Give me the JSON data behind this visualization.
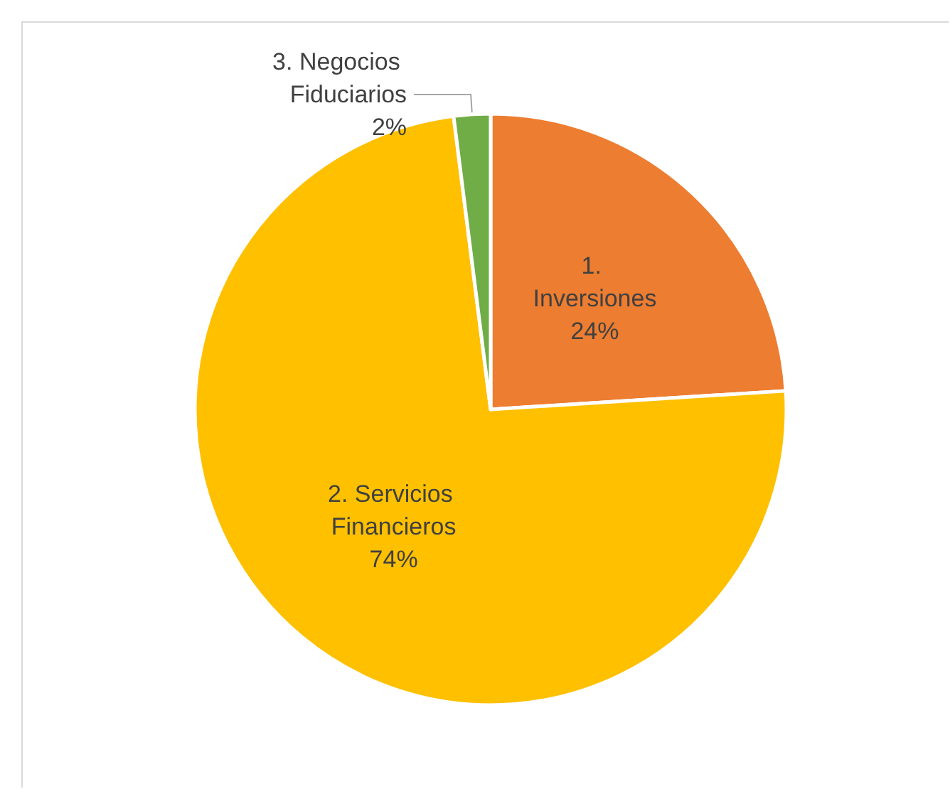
{
  "chart_data": {
    "type": "pie",
    "categories": [
      "1. Inversiones",
      "2. Servicios Financieros",
      "3. Negocios Fiduciarios"
    ],
    "values": [
      24,
      74,
      2
    ],
    "colors": [
      "#ed7d31",
      "#ffc000",
      "#70ad47"
    ],
    "value_labels": [
      "24%",
      "74%",
      "2%"
    ],
    "legend": false
  }
}
